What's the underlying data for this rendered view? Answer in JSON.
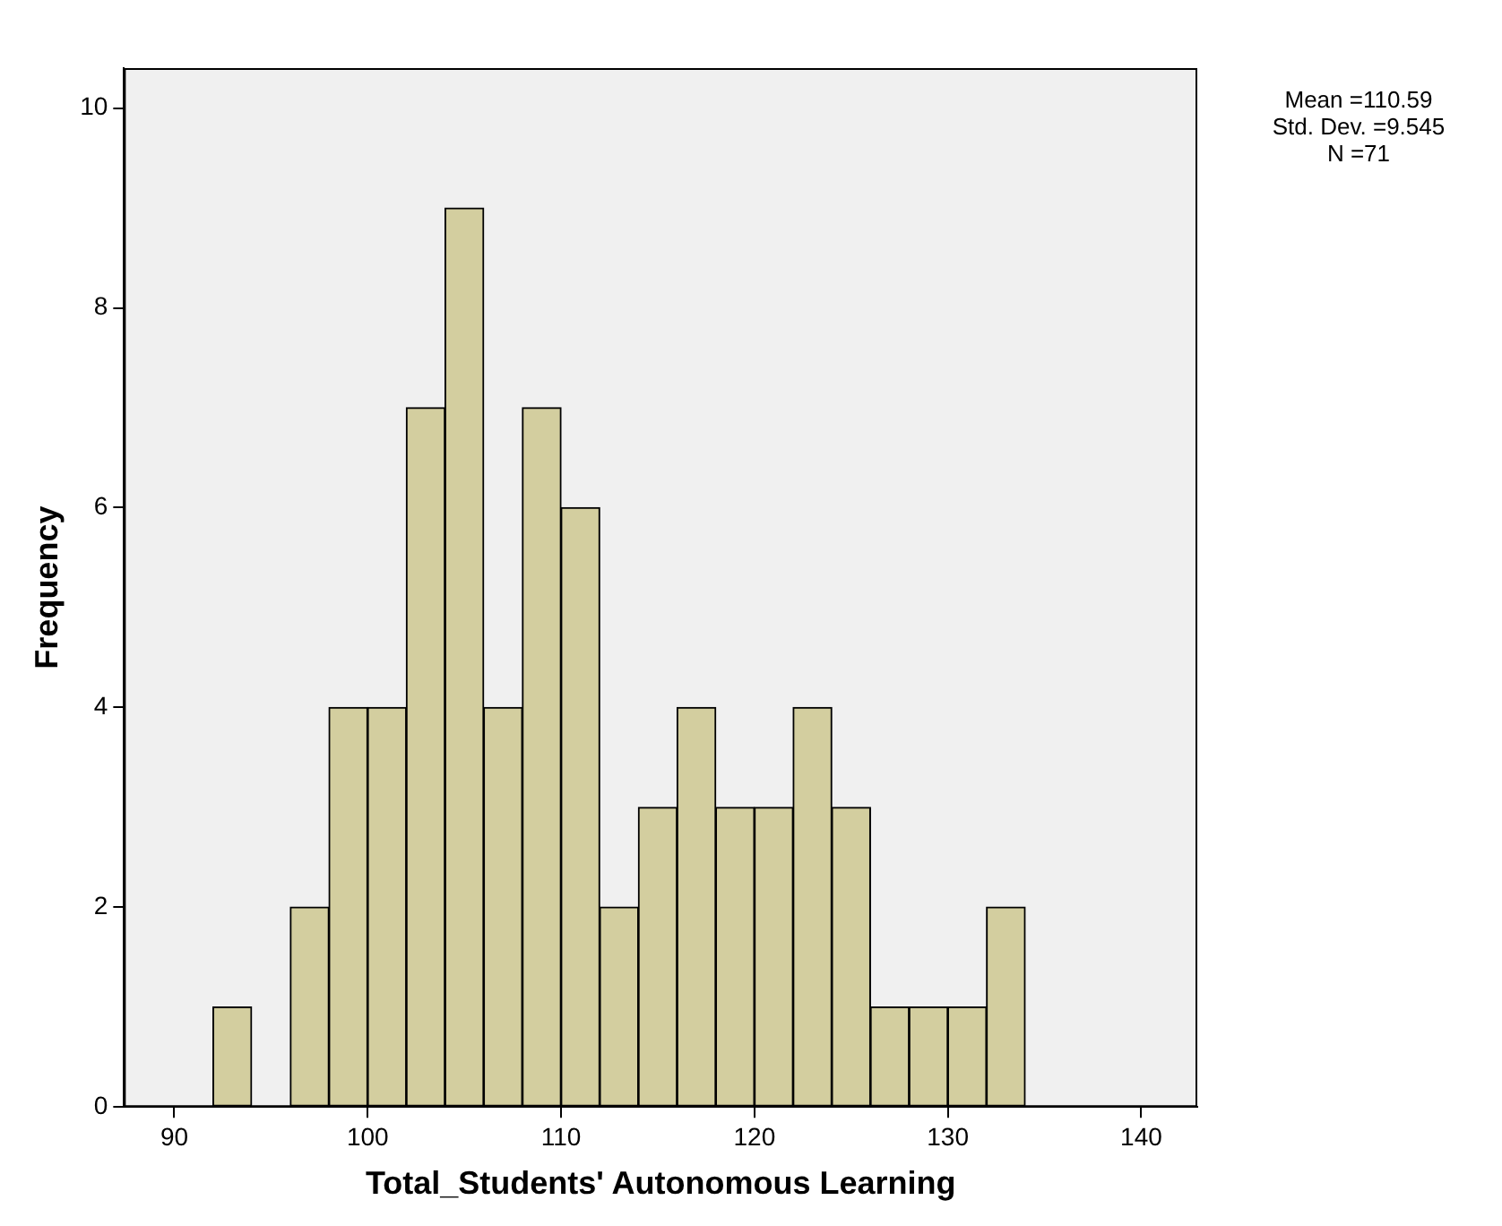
{
  "chart_data": {
    "type": "histogram",
    "xlabel": "Total_Students' Autonomous Learning",
    "ylabel": "Frequency",
    "bins": [
      92,
      94,
      96,
      98,
      100,
      102,
      104,
      106,
      108,
      110,
      112,
      114,
      116,
      118,
      120,
      122,
      124,
      126,
      128,
      130,
      132,
      134
    ],
    "values": [
      1,
      0,
      2,
      4,
      4,
      7,
      9,
      4,
      7,
      6,
      2,
      3,
      4,
      3,
      3,
      4,
      3,
      1,
      1,
      1,
      2
    ],
    "color": "#d3ce9f",
    "xlim": [
      87.4,
      142.9
    ],
    "xticks": [
      90,
      100,
      110,
      120,
      130,
      140
    ],
    "ylim": [
      0,
      10.4
    ],
    "yticks": [
      0,
      2,
      4,
      6,
      8,
      10
    ],
    "grid": false,
    "legend": false,
    "annotations": [
      "Mean =110.59",
      "Std. Dev. =9.545",
      "N =71"
    ]
  }
}
